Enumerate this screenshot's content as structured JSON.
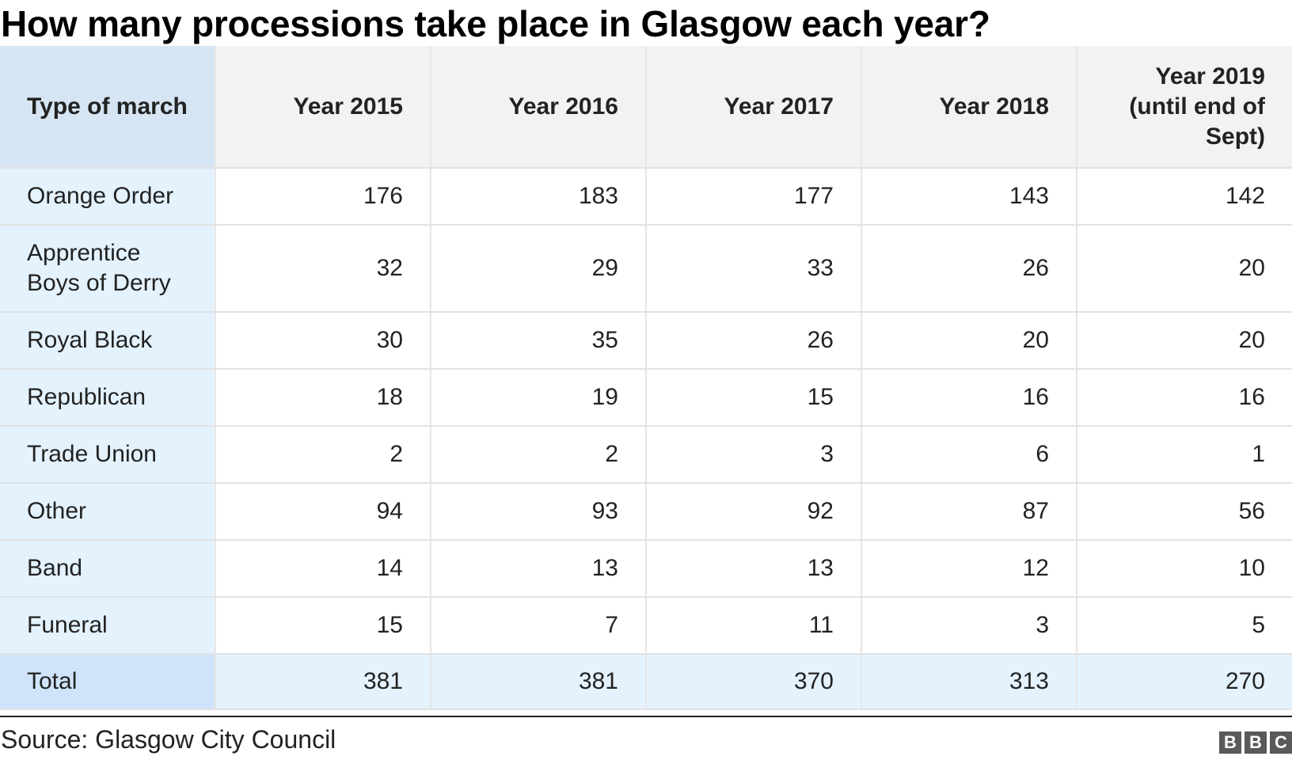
{
  "title": "How many processions take place in Glasgow each year?",
  "source": "Source: Glasgow City Council",
  "logo": [
    "B",
    "B",
    "C"
  ],
  "chart_data": {
    "type": "table",
    "title": "How many processions take place in Glasgow each year?",
    "header_first": "Type of march",
    "columns": [
      "Year 2015",
      "Year 2016",
      "Year 2017",
      "Year 2018",
      "Year 2019 (until end of Sept)"
    ],
    "rows": [
      {
        "label": "Orange Order",
        "values": [
          176,
          183,
          177,
          143,
          142
        ]
      },
      {
        "label": "Apprentice Boys of Derry",
        "values": [
          32,
          29,
          33,
          26,
          20
        ]
      },
      {
        "label": "Royal Black",
        "values": [
          30,
          35,
          26,
          20,
          20
        ]
      },
      {
        "label": "Republican",
        "values": [
          18,
          19,
          15,
          16,
          16
        ]
      },
      {
        "label": "Trade Union",
        "values": [
          2,
          2,
          3,
          6,
          1
        ]
      },
      {
        "label": "Other",
        "values": [
          94,
          93,
          92,
          87,
          56
        ]
      },
      {
        "label": "Band",
        "values": [
          14,
          13,
          13,
          12,
          10
        ]
      },
      {
        "label": "Funeral",
        "values": [
          15,
          7,
          11,
          3,
          5
        ]
      }
    ],
    "total": {
      "label": "Total",
      "values": [
        381,
        381,
        370,
        313,
        270
      ]
    }
  },
  "colors": {
    "header_corner": "#d6e5f3",
    "header_year": "#f2f2f2",
    "label_cell": "#e4f2fe",
    "total_label": "#cfe4fa",
    "total_row": "#e4f2fe",
    "logo": "#5a5a5a"
  }
}
